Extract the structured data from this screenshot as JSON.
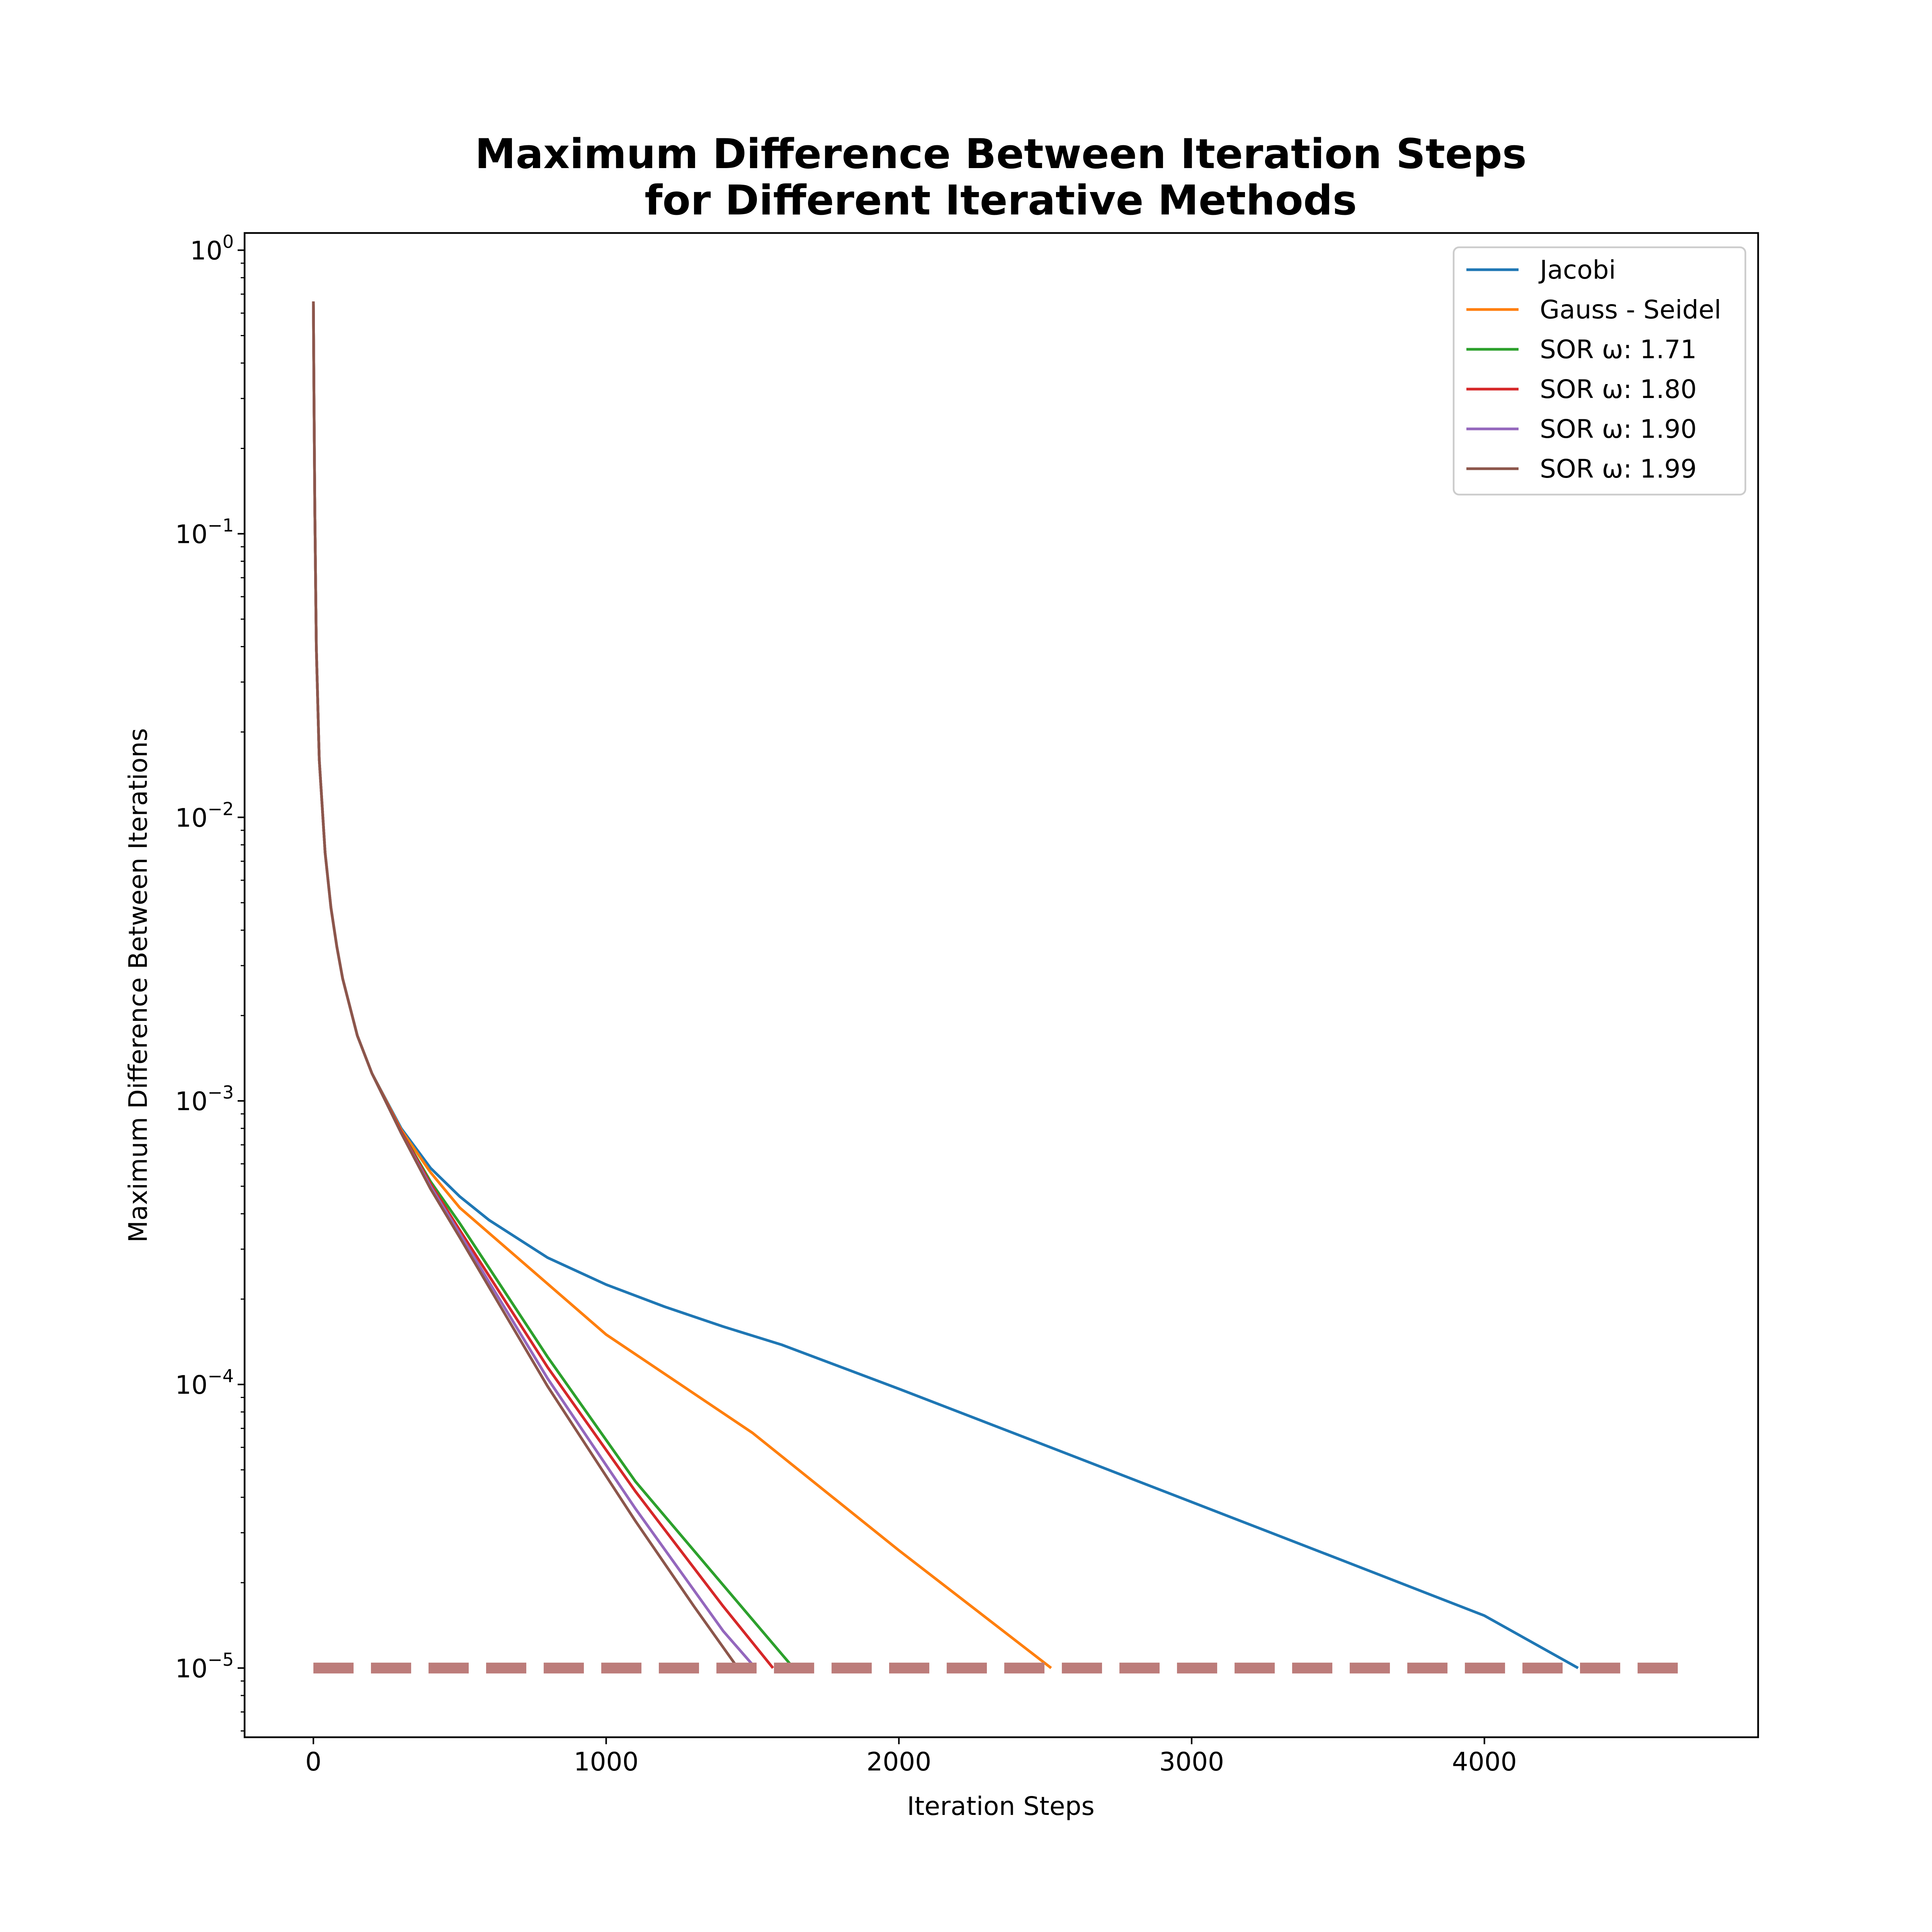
{
  "chart_data": {
    "type": "line",
    "title": [
      "Maximum Difference Between Iteration Steps",
      "for Different Iterative Methods"
    ],
    "xlabel": "Iteration Steps",
    "ylabel": "Maximum Difference Between Iterations",
    "xlim": [
      -235,
      4935
    ],
    "ylim": [
      5.7e-06,
      1.15
    ],
    "yscale": "log",
    "x_ticks": [
      0,
      1000,
      2000,
      3000,
      4000
    ],
    "x_tick_labels": [
      "0",
      "1000",
      "2000",
      "3000",
      "4000"
    ],
    "y_ticks": [
      {
        "value": 1,
        "base": "10",
        "exp": "0"
      },
      {
        "value": 0.1,
        "base": "10",
        "exp": "−1"
      },
      {
        "value": 0.01,
        "base": "10",
        "exp": "−2"
      },
      {
        "value": 0.001,
        "base": "10",
        "exp": "−3"
      },
      {
        "value": 0.0001,
        "base": "10",
        "exp": "−4"
      },
      {
        "value": 1e-05,
        "base": "10",
        "exp": "−5"
      }
    ],
    "grid": false,
    "legend_position": "top-right",
    "threshold": {
      "y": 1e-05,
      "x_start": 0,
      "x_end": 4700,
      "color": "#bc7c7a",
      "style": "dashed"
    },
    "series": [
      {
        "name": "Jacobi",
        "color": "#1f77b4",
        "points": [
          [
            0,
            0.66
          ],
          [
            2,
            0.3
          ],
          [
            5,
            0.12
          ],
          [
            10,
            0.04
          ],
          [
            20,
            0.016
          ],
          [
            40,
            0.0075
          ],
          [
            60,
            0.0048
          ],
          [
            80,
            0.0035
          ],
          [
            100,
            0.0027
          ],
          [
            150,
            0.0017
          ],
          [
            200,
            0.00125
          ],
          [
            300,
            0.0008
          ],
          [
            400,
            0.00058
          ],
          [
            500,
            0.00046
          ],
          [
            600,
            0.00038
          ],
          [
            800,
            0.00028
          ],
          [
            1000,
            0.000225
          ],
          [
            1200,
            0.000188
          ],
          [
            1400,
            0.00016
          ],
          [
            1600,
            0.000138
          ],
          [
            2000,
            9.65e-05
          ],
          [
            2500,
            6.1e-05
          ],
          [
            3000,
            3.85e-05
          ],
          [
            3500,
            2.43e-05
          ],
          [
            4000,
            1.53e-05
          ],
          [
            4320,
            1e-05
          ]
        ]
      },
      {
        "name": "Gauss - Seidel",
        "color": "#ff7f0e",
        "points": [
          [
            0,
            0.66
          ],
          [
            2,
            0.3
          ],
          [
            5,
            0.12
          ],
          [
            10,
            0.04
          ],
          [
            20,
            0.016
          ],
          [
            40,
            0.0075
          ],
          [
            60,
            0.0048
          ],
          [
            80,
            0.0035
          ],
          [
            100,
            0.0027
          ],
          [
            150,
            0.0017
          ],
          [
            200,
            0.00125
          ],
          [
            300,
            0.00079
          ],
          [
            400,
            0.00056
          ],
          [
            500,
            0.00042
          ],
          [
            1000,
            0.00015
          ],
          [
            1500,
            6.75e-05
          ],
          [
            2000,
            2.6e-05
          ],
          [
            2520,
            1e-05
          ]
        ]
      },
      {
        "name": "SOR ω: 1.71",
        "color": "#2ca02c",
        "points": [
          [
            0,
            0.66
          ],
          [
            2,
            0.3
          ],
          [
            5,
            0.12
          ],
          [
            10,
            0.04
          ],
          [
            20,
            0.016
          ],
          [
            40,
            0.0075
          ],
          [
            60,
            0.0048
          ],
          [
            80,
            0.0035
          ],
          [
            100,
            0.0027
          ],
          [
            150,
            0.0017
          ],
          [
            200,
            0.00125
          ],
          [
            300,
            0.00078
          ],
          [
            400,
            0.00052
          ],
          [
            500,
            0.00037
          ],
          [
            800,
            0.000125
          ],
          [
            1100,
            4.55e-05
          ],
          [
            1400,
            1.96e-05
          ],
          [
            1640,
            1e-05
          ]
        ]
      },
      {
        "name": "SOR ω: 1.80",
        "color": "#d62728",
        "points": [
          [
            0,
            0.66
          ],
          [
            2,
            0.3
          ],
          [
            5,
            0.12
          ],
          [
            10,
            0.04
          ],
          [
            20,
            0.016
          ],
          [
            40,
            0.0075
          ],
          [
            60,
            0.0048
          ],
          [
            80,
            0.0035
          ],
          [
            100,
            0.0027
          ],
          [
            150,
            0.0017
          ],
          [
            200,
            0.00125
          ],
          [
            300,
            0.00078
          ],
          [
            400,
            0.00051
          ],
          [
            500,
            0.00035
          ],
          [
            800,
            0.000115
          ],
          [
            1100,
            4.2e-05
          ],
          [
            1400,
            1.65e-05
          ],
          [
            1570,
            1e-05
          ]
        ]
      },
      {
        "name": "SOR ω: 1.90",
        "color": "#9467bd",
        "points": [
          [
            0,
            0.66
          ],
          [
            2,
            0.3
          ],
          [
            5,
            0.12
          ],
          [
            10,
            0.04
          ],
          [
            20,
            0.016
          ],
          [
            40,
            0.0075
          ],
          [
            60,
            0.0048
          ],
          [
            80,
            0.0035
          ],
          [
            100,
            0.0027
          ],
          [
            150,
            0.0017
          ],
          [
            200,
            0.00125
          ],
          [
            300,
            0.00077
          ],
          [
            400,
            0.0005
          ],
          [
            500,
            0.00034
          ],
          [
            800,
            0.000105
          ],
          [
            1100,
            3.65e-05
          ],
          [
            1400,
            1.35e-05
          ],
          [
            1510,
            1e-05
          ]
        ]
      },
      {
        "name": "SOR ω: 1.99",
        "color": "#8c564b",
        "points": [
          [
            0,
            0.66
          ],
          [
            2,
            0.3
          ],
          [
            5,
            0.12
          ],
          [
            10,
            0.04
          ],
          [
            20,
            0.016
          ],
          [
            40,
            0.0075
          ],
          [
            60,
            0.0048
          ],
          [
            80,
            0.0035
          ],
          [
            100,
            0.0027
          ],
          [
            150,
            0.0017
          ],
          [
            200,
            0.00125
          ],
          [
            300,
            0.00077
          ],
          [
            400,
            0.00049
          ],
          [
            500,
            0.00033
          ],
          [
            800,
            9.85e-05
          ],
          [
            1100,
            3.3e-05
          ],
          [
            1300,
            1.65e-05
          ],
          [
            1450,
            1e-05
          ]
        ]
      }
    ]
  }
}
